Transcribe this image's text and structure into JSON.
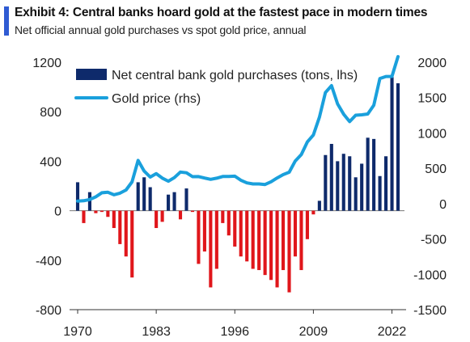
{
  "exhibit": {
    "title": "Exhibit 4: Central banks hoard gold at the fastest pace in modern times",
    "subtitle": "Net official annual gold purchases vs spot gold price, annual"
  },
  "colors": {
    "accent": "#2f5bd3",
    "positive_bar": "#0e2a6b",
    "negative_bar": "#e0161b",
    "price_line": "#1aa0dc"
  },
  "chart_data": {
    "type": "bar+line",
    "title": "Exhibit 4: Central banks hoard gold at the fastest pace in modern times",
    "subtitle": "Net official annual gold purchases vs spot gold price, annual",
    "x": [
      1970,
      1971,
      1972,
      1973,
      1974,
      1975,
      1976,
      1977,
      1978,
      1979,
      1980,
      1981,
      1982,
      1983,
      1984,
      1985,
      1986,
      1987,
      1988,
      1989,
      1990,
      1991,
      1992,
      1993,
      1994,
      1995,
      1996,
      1997,
      1998,
      1999,
      2000,
      2001,
      2002,
      2003,
      2004,
      2005,
      2006,
      2007,
      2008,
      2009,
      2010,
      2011,
      2012,
      2013,
      2014,
      2015,
      2016,
      2017,
      2018,
      2019,
      2020,
      2021,
      2022,
      2023
    ],
    "x_ticks": [
      "1970",
      "1983",
      "1996",
      "2009",
      "2022"
    ],
    "y_left": {
      "ticks": [
        "1200",
        "800",
        "400",
        "0",
        "-400",
        "-800"
      ],
      "ylim": [
        -800,
        1200
      ]
    },
    "y_right": {
      "ticks": [
        "2000",
        "1500",
        "1000",
        "500",
        "0",
        "-500",
        "-1000",
        "-1500"
      ],
      "ylim": [
        -1500,
        2000
      ]
    },
    "legend_position": "top-left",
    "series": [
      {
        "name": "Net central bank gold purchases (tons, lhs)",
        "kind": "bar",
        "axis": "left",
        "values": [
          230,
          -100,
          150,
          -20,
          -10,
          -50,
          -140,
          -270,
          -370,
          -540,
          230,
          270,
          190,
          -140,
          -90,
          130,
          150,
          -70,
          180,
          -10,
          -430,
          -330,
          -620,
          -470,
          -100,
          -200,
          -290,
          -370,
          -410,
          -470,
          -480,
          -520,
          -560,
          -620,
          -480,
          -660,
          -370,
          -480,
          -230,
          -30,
          80,
          450,
          540,
          400,
          460,
          440,
          270,
          380,
          590,
          580,
          280,
          440,
          1080,
          1030
        ]
      },
      {
        "name": "Gold price (rhs)",
        "kind": "line",
        "axis": "right",
        "values": [
          36,
          41,
          58,
          97,
          154,
          161,
          125,
          148,
          193,
          307,
          612,
          460,
          376,
          424,
          361,
          317,
          368,
          447,
          437,
          381,
          383,
          362,
          344,
          360,
          384,
          384,
          388,
          331,
          294,
          279,
          279,
          271,
          310,
          363,
          410,
          445,
          604,
          695,
          872,
          972,
          1225,
          1572,
          1669,
          1411,
          1266,
          1160,
          1251,
          1257,
          1268,
          1393,
          1770,
          1799,
          1800,
          2080
        ]
      }
    ]
  }
}
